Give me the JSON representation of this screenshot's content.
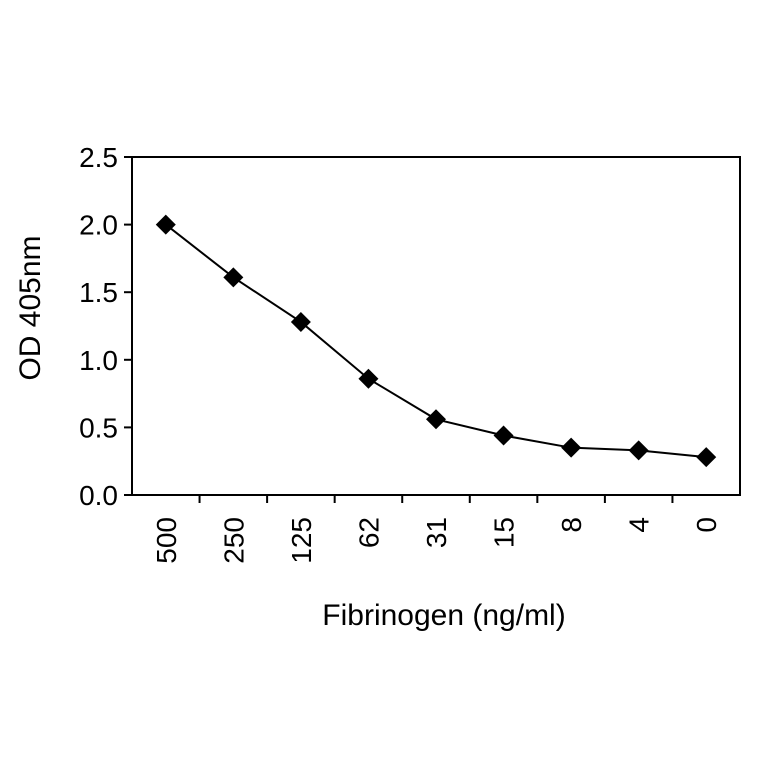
{
  "chart_data": {
    "type": "line",
    "title": "",
    "xlabel": "Fibrinogen (ng/ml)",
    "ylabel": "OD 405nm",
    "categories": [
      "500",
      "250",
      "125",
      "62",
      "31",
      "15",
      "8",
      "4",
      "0"
    ],
    "series": [
      {
        "values": [
          2.0,
          1.61,
          1.28,
          0.86,
          0.56,
          0.44,
          0.35,
          0.33,
          0.28
        ],
        "color": "#000000",
        "marker": "diamond"
      }
    ],
    "ylim": [
      0,
      2.5
    ],
    "yticks": [
      "0.0",
      "0.5",
      "1.0",
      "1.5",
      "2.0",
      "2.5"
    ],
    "grid": false,
    "legend": "none"
  }
}
